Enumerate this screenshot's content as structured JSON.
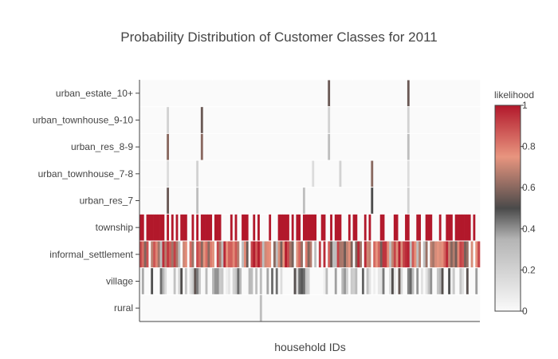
{
  "chart_data": {
    "type": "heatmap",
    "title": "Probability Distribution of Customer Classes for 2011",
    "xlabel": "household IDs",
    "ylabel": "",
    "x_ticks_shown": false,
    "y_categories": [
      "rural",
      "village",
      "informal_settlement",
      "township",
      "urban_res_7",
      "urban_townhouse_7-8",
      "urban_res_8-9",
      "urban_townhouse_9-10",
      "urban_estate_10+"
    ],
    "num_households": 150,
    "colorscale": [
      [
        0.0,
        "#fafafa"
      ],
      [
        0.35,
        "#b4b4b4"
      ],
      [
        0.5,
        "#4a4a4a"
      ],
      [
        0.75,
        "#e8957f"
      ],
      [
        1.0,
        "#b2182b"
      ]
    ],
    "zlim": [
      0,
      1
    ],
    "colorbar": {
      "title": "likelihood",
      "ticks": [
        "0",
        "0.2",
        "0.4",
        "0.6",
        "0.8",
        "1"
      ],
      "tick_values": [
        0,
        0.2,
        0.4,
        0.6,
        0.8,
        1
      ]
    },
    "grid": false,
    "row_patterns": {
      "rural": {
        "base": 0.0,
        "spikes": [
          [
            53,
            0.3
          ]
        ]
      },
      "village": {
        "base": "sparse_low",
        "density": 0.55,
        "range": [
          0.05,
          0.55
        ]
      },
      "informal_settlement": {
        "base": "high_mixed",
        "range": [
          0.55,
          1.0
        ]
      },
      "township": {
        "base": "binary_high",
        "density": 0.6,
        "high": 1.0
      },
      "urban_res_7": {
        "base": 0.0,
        "spikes": [
          [
            12,
            0.55
          ],
          [
            25,
            0.3
          ],
          [
            72,
            0.3
          ],
          [
            102,
            0.5
          ],
          [
            118,
            0.2
          ]
        ]
      },
      "urban_townhouse_7-8": {
        "base": 0.0,
        "spikes": [
          [
            12,
            0.15
          ],
          [
            25,
            0.2
          ],
          [
            76,
            0.15
          ],
          [
            88,
            0.2
          ],
          [
            102,
            0.6
          ],
          [
            118,
            0.15
          ]
        ]
      },
      "urban_res_8-9": {
        "base": 0.0,
        "spikes": [
          [
            12,
            0.6
          ],
          [
            27,
            0.6
          ],
          [
            83,
            0.3
          ],
          [
            118,
            0.3
          ]
        ]
      },
      "urban_townhouse_9-10": {
        "base": 0.0,
        "spikes": [
          [
            12,
            0.2
          ],
          [
            27,
            0.55
          ],
          [
            83,
            0.2
          ],
          [
            118,
            0.2
          ]
        ]
      },
      "urban_estate_10+": {
        "base": 0.0,
        "spikes": [
          [
            83,
            0.55
          ],
          [
            118,
            0.55
          ]
        ]
      }
    }
  }
}
